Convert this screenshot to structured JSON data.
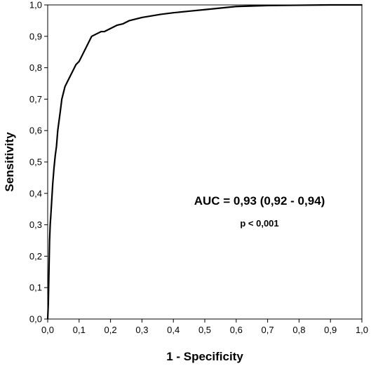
{
  "chart_data": {
    "type": "line",
    "xlabel": "1 - Specificity",
    "ylabel": "Sensitivity",
    "xlim": [
      0,
      1
    ],
    "ylim": [
      0,
      1
    ],
    "x_ticks": [
      "0,0",
      "0,1",
      "0,2",
      "0,3",
      "0,4",
      "0,5",
      "0,6",
      "0,7",
      "0,8",
      "0,9",
      "1,0"
    ],
    "y_ticks": [
      "0,0",
      "0,1",
      "0,2",
      "0,3",
      "0,4",
      "0,5",
      "0,6",
      "0,7",
      "0,8",
      "0,9",
      "1,0"
    ],
    "grid": false,
    "legend": "none",
    "line_color": "#000000",
    "annotations": [
      "AUC = 0,93 (0,92 - 0,94)",
      "p < 0,001"
    ],
    "series": [
      {
        "x": [
          0,
          0.002,
          0.004,
          0.006,
          0.008,
          0.01,
          0.013,
          0.016,
          0.02,
          0.024,
          0.028,
          0.032,
          0.036,
          0.04,
          0.045,
          0.05,
          0.055,
          0.06,
          0.065,
          0.07,
          0.08,
          0.09,
          0.1,
          0.11,
          0.12,
          0.13,
          0.14,
          0.15,
          0.16,
          0.17,
          0.18,
          0.19,
          0.2,
          0.22,
          0.24,
          0.26,
          0.28,
          0.3,
          0.33,
          0.36,
          0.4,
          0.45,
          0.5,
          0.55,
          0.6,
          0.7,
          0.8,
          0.9,
          1.0
        ],
        "y": [
          0,
          0.05,
          0.15,
          0.25,
          0.3,
          0.33,
          0.38,
          0.43,
          0.48,
          0.52,
          0.55,
          0.6,
          0.63,
          0.66,
          0.7,
          0.72,
          0.74,
          0.75,
          0.76,
          0.77,
          0.79,
          0.81,
          0.82,
          0.84,
          0.86,
          0.88,
          0.9,
          0.905,
          0.91,
          0.915,
          0.915,
          0.92,
          0.925,
          0.935,
          0.94,
          0.95,
          0.955,
          0.96,
          0.965,
          0.97,
          0.975,
          0.98,
          0.985,
          0.99,
          0.995,
          0.998,
          0.999,
          1.0,
          1.0
        ]
      }
    ]
  }
}
